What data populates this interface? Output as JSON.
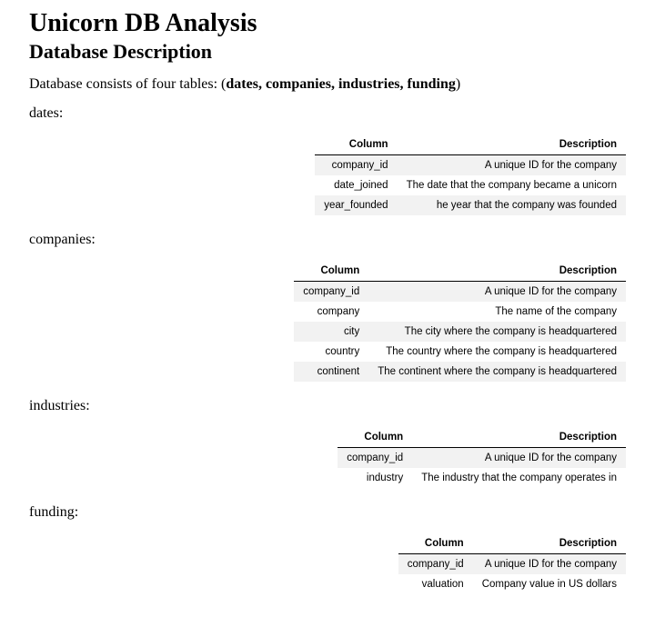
{
  "page": {
    "title": "Unicorn DB Analysis",
    "subtitle": "Database Description",
    "intro_prefix": "Database consists of four tables: (",
    "intro_bold": "dates, companies, industries, funding",
    "intro_suffix": ")",
    "text_color": "#000000",
    "background_color": "#ffffff",
    "title_fontsize": 28,
    "subtitle_fontsize": 22,
    "body_fontsize": 16
  },
  "table_style": {
    "header_border_color": "#000000",
    "stripe_color": "#f2f2f2",
    "font_family": "Arial",
    "font_size": 11.5,
    "text_align": "right"
  },
  "sections": [
    {
      "label": "dates:",
      "columns": [
        "Column",
        "Description"
      ],
      "rows": [
        [
          "company_id",
          "A unique ID for the company"
        ],
        [
          "date_joined",
          "The date that the company became a unicorn"
        ],
        [
          "year_founded",
          "he year that the company was founded"
        ]
      ]
    },
    {
      "label": "companies:",
      "columns": [
        "Column",
        "Description"
      ],
      "rows": [
        [
          "company_id",
          "A unique ID for the company"
        ],
        [
          "company",
          "The name of the company"
        ],
        [
          "city",
          "The city where the company is headquartered"
        ],
        [
          "country",
          "The country where the company is headquartered"
        ],
        [
          "continent",
          "The continent where the company is headquartered"
        ]
      ]
    },
    {
      "label": "industries:",
      "columns": [
        "Column",
        "Description"
      ],
      "rows": [
        [
          "company_id",
          "A unique ID for the company"
        ],
        [
          "industry",
          "The industry that the company operates in"
        ]
      ]
    },
    {
      "label": "funding:",
      "columns": [
        "Column",
        "Description"
      ],
      "rows": [
        [
          "company_id",
          "A unique ID for the company"
        ],
        [
          "valuation",
          "Company value in US dollars"
        ]
      ]
    }
  ]
}
